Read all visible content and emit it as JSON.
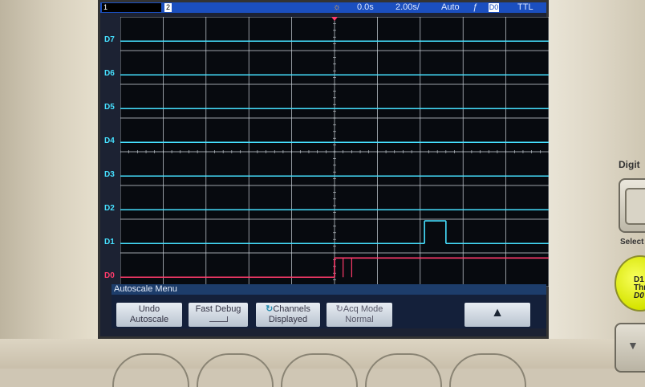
{
  "status_bar": {
    "channel_1_label": "1",
    "channel_2_label": "2",
    "trigger_icon": "sun-icon",
    "time_offset": "0.0s",
    "time_per_div": "2.00s/",
    "trigger_mode": "Auto",
    "trigger_slope": "ƒ",
    "trigger_source": "D0",
    "logic_level": "TTL"
  },
  "channels": [
    "D7",
    "D6",
    "D5",
    "D4",
    "D3",
    "D2",
    "D1",
    "D0"
  ],
  "colors": {
    "digital_trace": "#46e0ff",
    "d0_trace": "#ff3b6b",
    "grid": "#cfd6dd",
    "status_bar": "#1b4fbf"
  },
  "menu": {
    "title": "Autoscale Menu",
    "softkeys": [
      {
        "line1": "Undo",
        "line2": "Autoscale"
      },
      {
        "line1": "Fast Debug",
        "line2": ""
      },
      {
        "line1": "Channels",
        "line2": "Displayed"
      },
      {
        "line1": "Acq Mode",
        "line2": "Normal"
      },
      {
        "line1": "",
        "line2": ""
      }
    ]
  },
  "side_panel": {
    "section_label": "Digit",
    "select_label": "Select",
    "yellow_line1": "D1",
    "yellow_line2": "Thr",
    "yellow_line3": "D0"
  }
}
